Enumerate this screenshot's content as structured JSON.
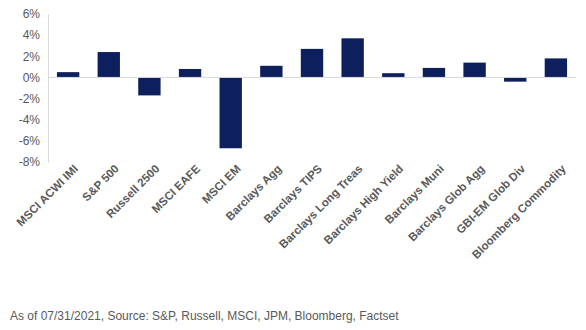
{
  "chart_data": {
    "type": "bar",
    "categories": [
      "MSCI ACWI IMI",
      "S&P 500",
      "Russell 2500",
      "MSCI EAFE",
      "MSCI EM",
      "Barclays Agg",
      "Barclays TIPS",
      "Barclays Long Treas",
      "Barclays High Yield",
      "Barclays Muni",
      "Barclays Glob Agg",
      "GBI-EM Glob Div",
      "Bloomberg Commodity"
    ],
    "values": [
      0.5,
      2.4,
      -1.7,
      0.8,
      -6.7,
      1.1,
      2.7,
      3.7,
      0.4,
      0.9,
      1.4,
      -0.4,
      1.8
    ],
    "color": "#0d1f5c",
    "ylim": [
      -8,
      6
    ],
    "yticks": [
      {
        "value": -8,
        "label": "-8%"
      },
      {
        "value": -6,
        "label": "-6%"
      },
      {
        "value": -4,
        "label": "-4%"
      },
      {
        "value": -2,
        "label": "-2%"
      },
      {
        "value": 0,
        "label": "0%"
      },
      {
        "value": 2,
        "label": "2%"
      },
      {
        "value": 4,
        "label": "4%"
      },
      {
        "value": 6,
        "label": "6%"
      }
    ],
    "grid": false,
    "data_labels": false,
    "source": "As of 07/31/2021, Source: S&P, Russell, MSCI, JPM, Bloomberg, Factset"
  }
}
